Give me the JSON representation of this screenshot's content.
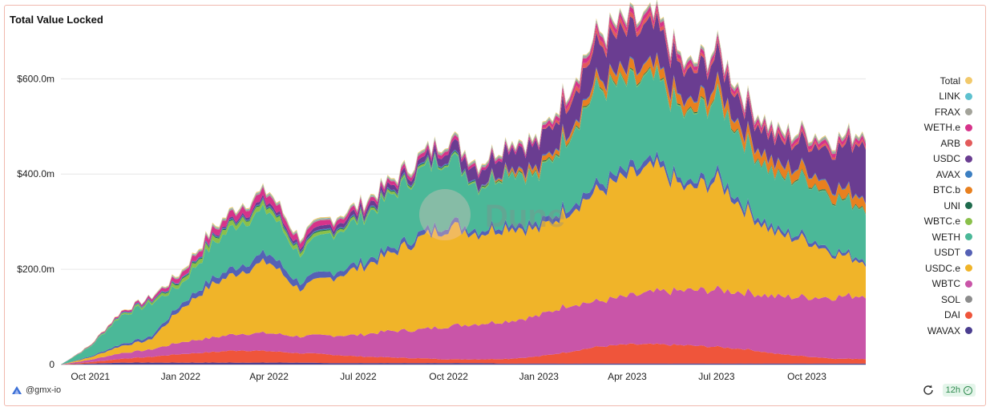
{
  "widget": {
    "title": "Total Value Locked",
    "author": "@gmx-io",
    "refresh_badge": "12h",
    "watermark": "Dune"
  },
  "chart_data": {
    "type": "area",
    "stacked": true,
    "title": "Total Value Locked",
    "ylim": [
      0,
      720000000
    ],
    "ytick_values": [
      0,
      200000000,
      400000000,
      600000000
    ],
    "ytick_labels": [
      "0",
      "$200.0m",
      "$400.0m",
      "$600.0m"
    ],
    "x_start": "2021-09-01",
    "x_end": "2023-11-30",
    "xticks": [
      {
        "date": "2021-10-01",
        "label": "Oct 2021"
      },
      {
        "date": "2022-01-01",
        "label": "Jan 2022"
      },
      {
        "date": "2022-04-01",
        "label": "Apr 2022"
      },
      {
        "date": "2022-07-01",
        "label": "Jul 2022"
      },
      {
        "date": "2022-10-01",
        "label": "Oct 2022"
      },
      {
        "date": "2023-01-01",
        "label": "Jan 2023"
      },
      {
        "date": "2023-04-01",
        "label": "Apr 2023"
      },
      {
        "date": "2023-07-01",
        "label": "Jul 2023"
      },
      {
        "date": "2023-10-01",
        "label": "Oct 2023"
      }
    ],
    "dates": [
      "2021-09-01",
      "2021-10-01",
      "2021-11-01",
      "2021-12-01",
      "2022-01-01",
      "2022-02-01",
      "2022-03-01",
      "2022-04-01",
      "2022-05-01",
      "2022-06-01",
      "2022-07-01",
      "2022-08-01",
      "2022-09-01",
      "2022-10-01",
      "2022-11-01",
      "2022-12-01",
      "2023-01-01",
      "2023-02-01",
      "2023-03-01",
      "2023-04-01",
      "2023-05-01",
      "2023-06-01",
      "2023-07-01",
      "2023-08-01",
      "2023-09-01",
      "2023-10-01",
      "2023-11-01",
      "2023-11-30"
    ],
    "series": [
      {
        "name": "WAVAX",
        "color": "#4a3d8f",
        "values": [
          0,
          2,
          4,
          4,
          4,
          4,
          4,
          4,
          4,
          3,
          3,
          3,
          3,
          3,
          3,
          2,
          2,
          2,
          2,
          2,
          2,
          2,
          2,
          2,
          2,
          2,
          2,
          2
        ]
      },
      {
        "name": "DAI",
        "color": "#ef553b",
        "values": [
          0,
          3,
          8,
          12,
          18,
          22,
          26,
          24,
          20,
          18,
          14,
          12,
          10,
          8,
          8,
          10,
          15,
          25,
          35,
          40,
          40,
          38,
          35,
          30,
          20,
          15,
          10,
          10
        ]
      },
      {
        "name": "SOL",
        "color": "#8c8c8c",
        "values": [
          0,
          0,
          0,
          0,
          0,
          0,
          0,
          0,
          0,
          0,
          0,
          0,
          0,
          0,
          0,
          0,
          0,
          0,
          0,
          0,
          0,
          0,
          0,
          0,
          0,
          0,
          0,
          0
        ]
      },
      {
        "name": "WBTC",
        "color": "#c955a8",
        "values": [
          0,
          5,
          12,
          15,
          25,
          30,
          35,
          38,
          35,
          40,
          45,
          55,
          60,
          70,
          75,
          80,
          85,
          100,
          95,
          100,
          110,
          115,
          120,
          120,
          120,
          125,
          130,
          135
        ]
      },
      {
        "name": "USDC.e",
        "color": "#f0b429",
        "values": [
          0,
          5,
          15,
          20,
          70,
          110,
          130,
          150,
          100,
          120,
          140,
          160,
          190,
          210,
          190,
          200,
          180,
          200,
          230,
          250,
          260,
          210,
          230,
          170,
          130,
          120,
          90,
          70
        ]
      },
      {
        "name": "USDT",
        "color": "#5561b5",
        "values": [
          0,
          2,
          4,
          6,
          10,
          12,
          14,
          18,
          14,
          12,
          10,
          10,
          10,
          10,
          8,
          10,
          10,
          12,
          14,
          14,
          12,
          10,
          12,
          10,
          8,
          8,
          6,
          6
        ]
      },
      {
        "name": "WETH",
        "color": "#4bb898",
        "values": [
          0,
          20,
          60,
          70,
          40,
          70,
          90,
          90,
          60,
          80,
          90,
          110,
          130,
          140,
          90,
          110,
          100,
          150,
          200,
          180,
          170,
          140,
          160,
          130,
          110,
          120,
          110,
          110
        ]
      },
      {
        "name": "WBTC.e",
        "color": "#8ac04a",
        "values": [
          0,
          1,
          3,
          4,
          8,
          10,
          10,
          10,
          8,
          6,
          5,
          5,
          4,
          3,
          3,
          2,
          2,
          2,
          2,
          2,
          2,
          2,
          2,
          1,
          1,
          1,
          1,
          1
        ]
      },
      {
        "name": "UNI",
        "color": "#1f6b4d",
        "values": [
          0,
          0,
          0,
          1,
          2,
          2,
          2,
          2,
          2,
          2,
          2,
          2,
          2,
          2,
          2,
          2,
          2,
          2,
          2,
          2,
          2,
          2,
          2,
          2,
          2,
          2,
          2,
          2
        ]
      },
      {
        "name": "BTC.b",
        "color": "#e8801f",
        "values": [
          0,
          0,
          0,
          0,
          0,
          0,
          0,
          0,
          0,
          0,
          0,
          0,
          0,
          0,
          0,
          5,
          10,
          10,
          15,
          20,
          20,
          20,
          20,
          20,
          20,
          20,
          20,
          20
        ]
      },
      {
        "name": "AVAX",
        "color": "#3c7fc2",
        "values": [
          0,
          1,
          2,
          2,
          2,
          2,
          2,
          2,
          2,
          2,
          2,
          2,
          2,
          2,
          2,
          2,
          2,
          2,
          2,
          2,
          2,
          2,
          2,
          2,
          2,
          2,
          2,
          2
        ]
      },
      {
        "name": "USDC",
        "color": "#6a3d91",
        "values": [
          0,
          0,
          0,
          0,
          0,
          2,
          4,
          6,
          6,
          8,
          10,
          10,
          10,
          20,
          30,
          40,
          50,
          60,
          70,
          80,
          80,
          60,
          60,
          50,
          50,
          55,
          80,
          120
        ]
      },
      {
        "name": "ARB",
        "color": "#e35b5b",
        "values": [
          0,
          0,
          0,
          0,
          0,
          0,
          0,
          0,
          0,
          0,
          0,
          0,
          0,
          0,
          0,
          0,
          0,
          10,
          10,
          10,
          8,
          6,
          6,
          5,
          5,
          5,
          5,
          5
        ]
      },
      {
        "name": "WETH.e",
        "color": "#d6338a",
        "values": [
          0,
          1,
          3,
          5,
          10,
          12,
          14,
          16,
          12,
          10,
          8,
          8,
          8,
          8,
          6,
          6,
          6,
          10,
          10,
          10,
          10,
          8,
          8,
          8,
          8,
          8,
          8,
          8
        ]
      },
      {
        "name": "FRAX",
        "color": "#a3a39a",
        "values": [
          0,
          0,
          0,
          0,
          2,
          3,
          3,
          4,
          3,
          3,
          3,
          3,
          4,
          4,
          4,
          4,
          4,
          4,
          5,
          5,
          5,
          5,
          5,
          5,
          5,
          5,
          5,
          5
        ]
      },
      {
        "name": "LINK",
        "color": "#5ec1cf",
        "values": [
          0,
          0,
          0,
          1,
          1,
          1,
          1,
          1,
          1,
          1,
          1,
          1,
          1,
          1,
          1,
          1,
          1,
          1,
          1,
          1,
          1,
          1,
          1,
          1,
          1,
          1,
          1,
          1
        ]
      },
      {
        "name": "Total",
        "color": "#f2c96b",
        "values": [
          0,
          1,
          1,
          1,
          2,
          2,
          2,
          2,
          2,
          2,
          2,
          2,
          2,
          2,
          2,
          2,
          2,
          2,
          2,
          2,
          2,
          2,
          2,
          2,
          2,
          2,
          2,
          2
        ]
      }
    ],
    "values_unit": "millions USD"
  }
}
